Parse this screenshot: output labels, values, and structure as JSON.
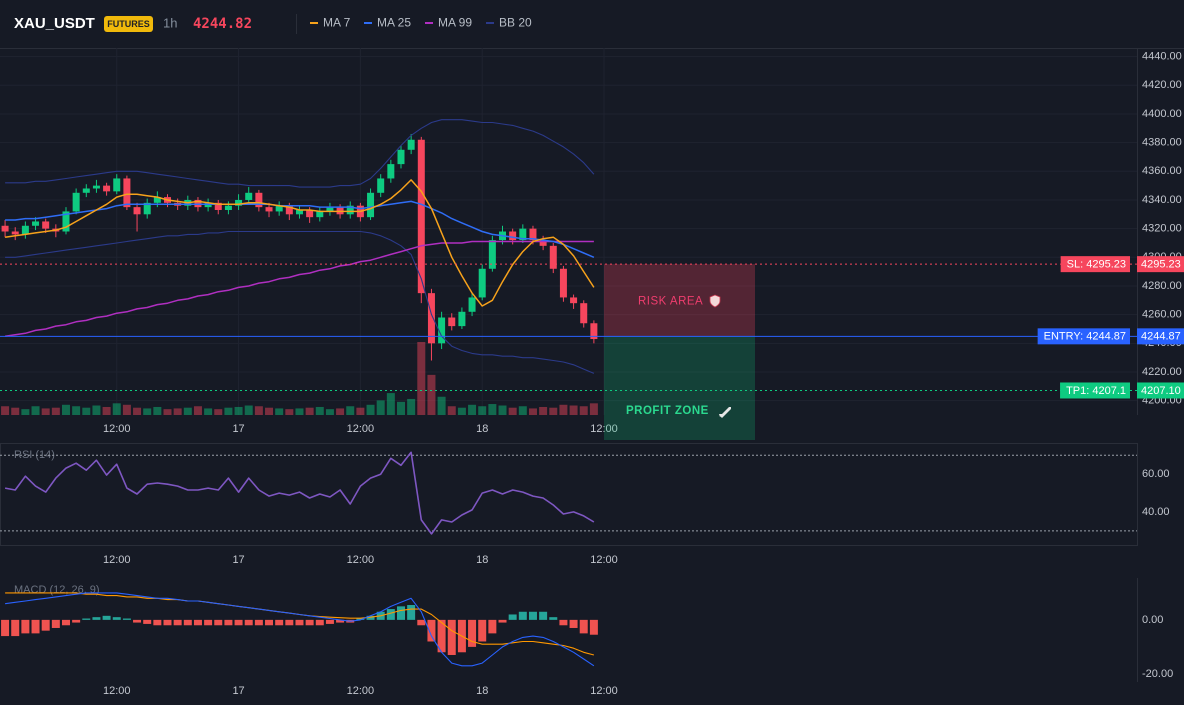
{
  "header": {
    "symbol": "XAU_USDT",
    "badge": "FUTURES",
    "interval": "1h",
    "price": 4244.82
  },
  "chart_data": [
    {
      "type": "candlestick",
      "open": [
        4322,
        4318,
        4316,
        4322,
        4325,
        4320,
        4318,
        4332,
        4345,
        4348,
        4350,
        4346,
        4355,
        4335,
        4330,
        4338,
        4342,
        4338,
        4336,
        4340,
        4335,
        4338,
        4333,
        4336,
        4340,
        4345,
        4335,
        4332,
        4336,
        4330,
        4333,
        4328,
        4332,
        4335,
        4330,
        4336,
        4328,
        4345,
        4355,
        4365,
        4375,
        4382,
        4275,
        4240,
        4258,
        4252,
        4262,
        4272,
        4292,
        4312,
        4318,
        4312,
        4320,
        4312,
        4308,
        4292,
        4272,
        4268,
        4254
      ],
      "high": [
        4326,
        4321,
        4325,
        4328,
        4327,
        4323,
        4335,
        4348,
        4351,
        4354,
        4352,
        4358,
        4357,
        4338,
        4341,
        4346,
        4344,
        4341,
        4343,
        4342,
        4341,
        4340,
        4339,
        4344,
        4349,
        4347,
        4338,
        4339,
        4338,
        4336,
        4335,
        4335,
        4338,
        4337,
        4339,
        4338,
        4348,
        4358,
        4368,
        4378,
        4386,
        4384,
        4278,
        4262,
        4261,
        4265,
        4275,
        4295,
        4315,
        4322,
        4320,
        4323,
        4322,
        4315,
        4310,
        4294,
        4274,
        4270,
        4256
      ],
      "low": [
        4314,
        4312,
        4313,
        4319,
        4317,
        4314,
        4316,
        4330,
        4342,
        4345,
        4343,
        4344,
        4333,
        4318,
        4327,
        4335,
        4335,
        4333,
        4333,
        4332,
        4332,
        4330,
        4330,
        4333,
        4337,
        4332,
        4328,
        4329,
        4326,
        4327,
        4324,
        4325,
        4329,
        4327,
        4327,
        4325,
        4326,
        4342,
        4352,
        4362,
        4372,
        4268,
        4228,
        4236,
        4249,
        4250,
        4259,
        4270,
        4290,
        4309,
        4309,
        4310,
        4309,
        4305,
        4289,
        4269,
        4264,
        4251,
        4240
      ],
      "close": [
        4318,
        4316,
        4322,
        4325,
        4320,
        4318,
        4332,
        4345,
        4348,
        4350,
        4346,
        4355,
        4335,
        4330,
        4338,
        4342,
        4338,
        4336,
        4340,
        4335,
        4338,
        4333,
        4336,
        4340,
        4345,
        4335,
        4332,
        4336,
        4330,
        4333,
        4328,
        4332,
        4335,
        4330,
        4336,
        4328,
        4345,
        4355,
        4365,
        4375,
        4382,
        4275,
        4240,
        4258,
        4252,
        4262,
        4272,
        4292,
        4312,
        4318,
        4312,
        4320,
        4312,
        4308,
        4292,
        4272,
        4268,
        4254,
        4243
      ],
      "volume": [
        12,
        10,
        8,
        12,
        9,
        10,
        14,
        12,
        10,
        13,
        11,
        16,
        14,
        10,
        9,
        11,
        8,
        9,
        10,
        12,
        9,
        8,
        10,
        11,
        13,
        12,
        10,
        9,
        8,
        9,
        10,
        11,
        8,
        9,
        12,
        10,
        14,
        20,
        30,
        18,
        22,
        100,
        55,
        25,
        12,
        10,
        14,
        12,
        15,
        13,
        10,
        12,
        9,
        11,
        10,
        14,
        13,
        12,
        16
      ],
      "up_color": "#0ecb81",
      "down_color": "#f6465d",
      "overlays": [
        {
          "name": "MA 7",
          "color": "#f7a21b",
          "values": [
            4314,
            4315,
            4316,
            4317,
            4318,
            4319,
            4321,
            4325,
            4329,
            4333,
            4337,
            4342,
            4344,
            4344,
            4343,
            4342,
            4340,
            4339,
            4338,
            4339,
            4338,
            4337,
            4337,
            4337,
            4338,
            4338,
            4337,
            4336,
            4335,
            4333,
            4333,
            4332,
            4332,
            4332,
            4332,
            4332,
            4334,
            4337,
            4341,
            4347,
            4354,
            4346,
            4334,
            4317,
            4300,
            4287,
            4275,
            4266,
            4270,
            4283,
            4295,
            4304,
            4311,
            4313,
            4314,
            4309,
            4301,
            4290,
            4279
          ]
        },
        {
          "name": "MA 25",
          "color": "#2f6df6",
          "values": [
            4326,
            4326,
            4327,
            4327,
            4328,
            4329,
            4330,
            4331,
            4332,
            4333,
            4334,
            4336,
            4337,
            4337,
            4337,
            4337,
            4337,
            4337,
            4337,
            4337,
            4337,
            4337,
            4337,
            4337,
            4337,
            4337,
            4337,
            4336,
            4336,
            4336,
            4336,
            4335,
            4335,
            4335,
            4335,
            4334,
            4335,
            4336,
            4337,
            4338,
            4339,
            4337,
            4334,
            4331,
            4327,
            4324,
            4321,
            4318,
            4316,
            4315,
            4314,
            4313,
            4313,
            4312,
            4311,
            4309,
            4306,
            4303,
            4300
          ]
        },
        {
          "name": "MA 99",
          "color": "#b02fc1",
          "values": [
            4245,
            4246,
            4247,
            4249,
            4250,
            4252,
            4253,
            4255,
            4256,
            4258,
            4259,
            4261,
            4262,
            4264,
            4265,
            4267,
            4268,
            4270,
            4271,
            4273,
            4274,
            4276,
            4277,
            4279,
            4280,
            4282,
            4283,
            4285,
            4286,
            4288,
            4289,
            4291,
            4292,
            4294,
            4295,
            4297,
            4298,
            4300,
            4302,
            4304,
            4306,
            4308,
            4309,
            4310,
            4310,
            4310,
            4311,
            4311,
            4311,
            4311,
            4311,
            4311,
            4311,
            4311,
            4311,
            4311,
            4311,
            4311,
            4311
          ]
        },
        {
          "name": "BB 20",
          "color": "#2b3a8a",
          "upper": [
            4352,
            4352,
            4352,
            4353,
            4353,
            4354,
            4355,
            4356,
            4357,
            4358,
            4359,
            4360,
            4360,
            4360,
            4359,
            4358,
            4357,
            4356,
            4355,
            4354,
            4353,
            4352,
            4351,
            4351,
            4350,
            4350,
            4350,
            4350,
            4350,
            4349,
            4349,
            4349,
            4349,
            4350,
            4350,
            4351,
            4355,
            4362,
            4370,
            4378,
            4385,
            4390,
            4394,
            4396,
            4396,
            4396,
            4395,
            4394,
            4394,
            4393,
            4392,
            4390,
            4388,
            4385,
            4381,
            4377,
            4372,
            4366,
            4358
          ],
          "lower": [
            4300,
            4300,
            4301,
            4302,
            4303,
            4304,
            4305,
            4306,
            4307,
            4308,
            4309,
            4310,
            4311,
            4312,
            4313,
            4314,
            4315,
            4315,
            4316,
            4316,
            4317,
            4317,
            4318,
            4318,
            4318,
            4318,
            4318,
            4318,
            4318,
            4318,
            4318,
            4318,
            4318,
            4318,
            4318,
            4318,
            4317,
            4315,
            4312,
            4308,
            4302,
            4285,
            4260,
            4245,
            4238,
            4235,
            4233,
            4232,
            4232,
            4231,
            4231,
            4230,
            4230,
            4229,
            4228,
            4227,
            4225,
            4222,
            4219
          ]
        }
      ],
      "levels": [
        {
          "label": "SL: 4295.23",
          "value": 4295.23,
          "color": "#f6465d",
          "dashed": true,
          "zone": "RISK AREA"
        },
        {
          "label": "ENTRY: 4244.87",
          "value": 4244.87,
          "color": "#2962ff",
          "dashed": false
        },
        {
          "label": "TP1: 4207.1",
          "value": 4207.1,
          "value_label": "4207.10",
          "color": "#0ecb81",
          "dashed": true,
          "zone": "PROFIT ZONE"
        }
      ],
      "xlim": [
        -0.5,
        111.5
      ],
      "xticks": [
        {
          "value": 11,
          "label": "12:00"
        },
        {
          "value": 23,
          "label": "17"
        },
        {
          "value": 35,
          "label": "12:00"
        },
        {
          "value": 47,
          "label": "18"
        },
        {
          "value": 59,
          "label": "12:00"
        }
      ],
      "ylim": [
        4190,
        4446
      ],
      "yticks": [
        {
          "value": 4440,
          "label": "4440.00"
        },
        {
          "value": 4420,
          "label": "4420.00"
        },
        {
          "value": 4400,
          "label": "4400.00"
        },
        {
          "value": 4380,
          "label": "4380.00"
        },
        {
          "value": 4360,
          "label": "4360.00"
        },
        {
          "value": 4340,
          "label": "4340.00"
        },
        {
          "value": 4320,
          "label": "4320.00"
        },
        {
          "value": 4300,
          "label": "4300.00"
        },
        {
          "value": 4280,
          "label": "4280.00"
        },
        {
          "value": 4260,
          "label": "4260.00"
        },
        {
          "value": 4240,
          "label": "4240.00"
        },
        {
          "value": 4220,
          "label": "4220.00"
        },
        {
          "value": 4200,
          "label": "4200.00"
        }
      ],
      "grid": true
    },
    {
      "type": "line",
      "title": "RSI (14)",
      "color": "#7e57c2",
      "values": [
        52.6,
        51.6,
        58.9,
        53.7,
        50.5,
        57.9,
        63.2,
        65.8,
        62.1,
        67.4,
        59.5,
        65.3,
        52.6,
        49.5,
        54.7,
        55.3,
        54.7,
        53.7,
        51.6,
        51.6,
        52.6,
        51.6,
        57.9,
        50.5,
        57.9,
        51.6,
        48.4,
        50.0,
        48.9,
        50.5,
        47.4,
        49.5,
        47.9,
        51.6,
        44.2,
        53.7,
        57.9,
        60.0,
        68.4,
        64.7,
        71.6,
        35.8,
        28.4,
        35.8,
        34.7,
        38.4,
        41.1,
        50.0,
        51.6,
        49.5,
        51.6,
        50.5,
        48.4,
        47.4,
        43.7,
        38.9,
        40.0,
        37.9,
        34.7
      ],
      "levels": [
        70,
        30
      ],
      "xlim": [
        -0.5,
        111.5
      ],
      "xticks": [
        {
          "value": 11,
          "label": "12:00"
        },
        {
          "value": 23,
          "label": "17"
        },
        {
          "value": 35,
          "label": "12:00"
        },
        {
          "value": 47,
          "label": "18"
        },
        {
          "value": 59,
          "label": "12:00"
        }
      ],
      "ylim": [
        22.5,
        76.5
      ],
      "yticks": [
        {
          "value": 60,
          "label": "60.00"
        },
        {
          "value": 40,
          "label": "40.00"
        }
      ],
      "grid": false
    },
    {
      "type": "macd",
      "title": "MACD (12, 26, 9)",
      "macd": [
        6,
        6.5,
        7,
        7.5,
        8,
        8.5,
        9,
        9.5,
        10,
        10,
        10,
        10,
        9.5,
        9,
        8.5,
        8,
        8,
        7.5,
        7,
        7,
        6.5,
        6,
        5.5,
        5,
        4.5,
        4,
        3.5,
        3,
        2.5,
        2,
        1.5,
        1,
        0.5,
        0,
        -0.5,
        0,
        1.5,
        3,
        5,
        6.5,
        8,
        3,
        -6,
        -12,
        -16,
        -17,
        -17,
        -16,
        -13,
        -10,
        -8,
        -6.5,
        -6,
        -6.5,
        -8,
        -10,
        -12,
        -14.5,
        -17
      ],
      "signal": [
        10,
        10,
        10,
        10,
        10,
        10,
        10,
        10,
        9.5,
        9.5,
        9,
        9,
        8.5,
        8.5,
        8,
        8,
        7.5,
        7.5,
        7,
        7,
        6.5,
        6,
        5.5,
        5,
        4.5,
        4,
        3.5,
        3,
        2.5,
        2,
        1.5,
        1.2,
        1,
        0.8,
        0.6,
        0.6,
        1,
        1.5,
        2.5,
        3.5,
        4,
        4,
        2,
        -1,
        -4,
        -6,
        -8,
        -9,
        -9,
        -9,
        -8.5,
        -8,
        -8,
        -8.5,
        -9,
        -9.5,
        -10.5,
        -12,
        -13
      ],
      "histogram": [
        -6,
        -6,
        -5,
        -5,
        -4,
        -3,
        -2,
        -1,
        0.5,
        1,
        1.5,
        1,
        0.5,
        -1,
        -1.5,
        -2,
        -2,
        -2,
        -2,
        -2,
        -2,
        -2,
        -2,
        -2,
        -2,
        -2,
        -2,
        -2,
        -2,
        -2,
        -2,
        -2,
        -1.5,
        -1,
        -1,
        0.5,
        1.5,
        3,
        4,
        5,
        5.5,
        -2,
        -8,
        -12,
        -13,
        -12,
        -10,
        -8,
        -5,
        -1,
        2,
        3,
        3,
        3,
        1,
        -2,
        -3,
        -5,
        -5.5
      ],
      "colors": {
        "macd": "#2962ff",
        "signal": "#ff9800",
        "positive": "#26a69a",
        "negative": "#ef5350"
      },
      "xlim": [
        -0.5,
        111.5
      ],
      "xticks": [
        {
          "value": 11,
          "label": "12:00"
        },
        {
          "value": 23,
          "label": "17"
        },
        {
          "value": 35,
          "label": "12:00"
        },
        {
          "value": 47,
          "label": "18"
        },
        {
          "value": 59,
          "label": "12:00"
        }
      ],
      "ylim": [
        -23,
        15.5
      ],
      "yticks": [
        {
          "value": 0,
          "label": "0.00"
        },
        {
          "value": -20,
          "label": "-20.00"
        }
      ],
      "grid": false
    }
  ]
}
